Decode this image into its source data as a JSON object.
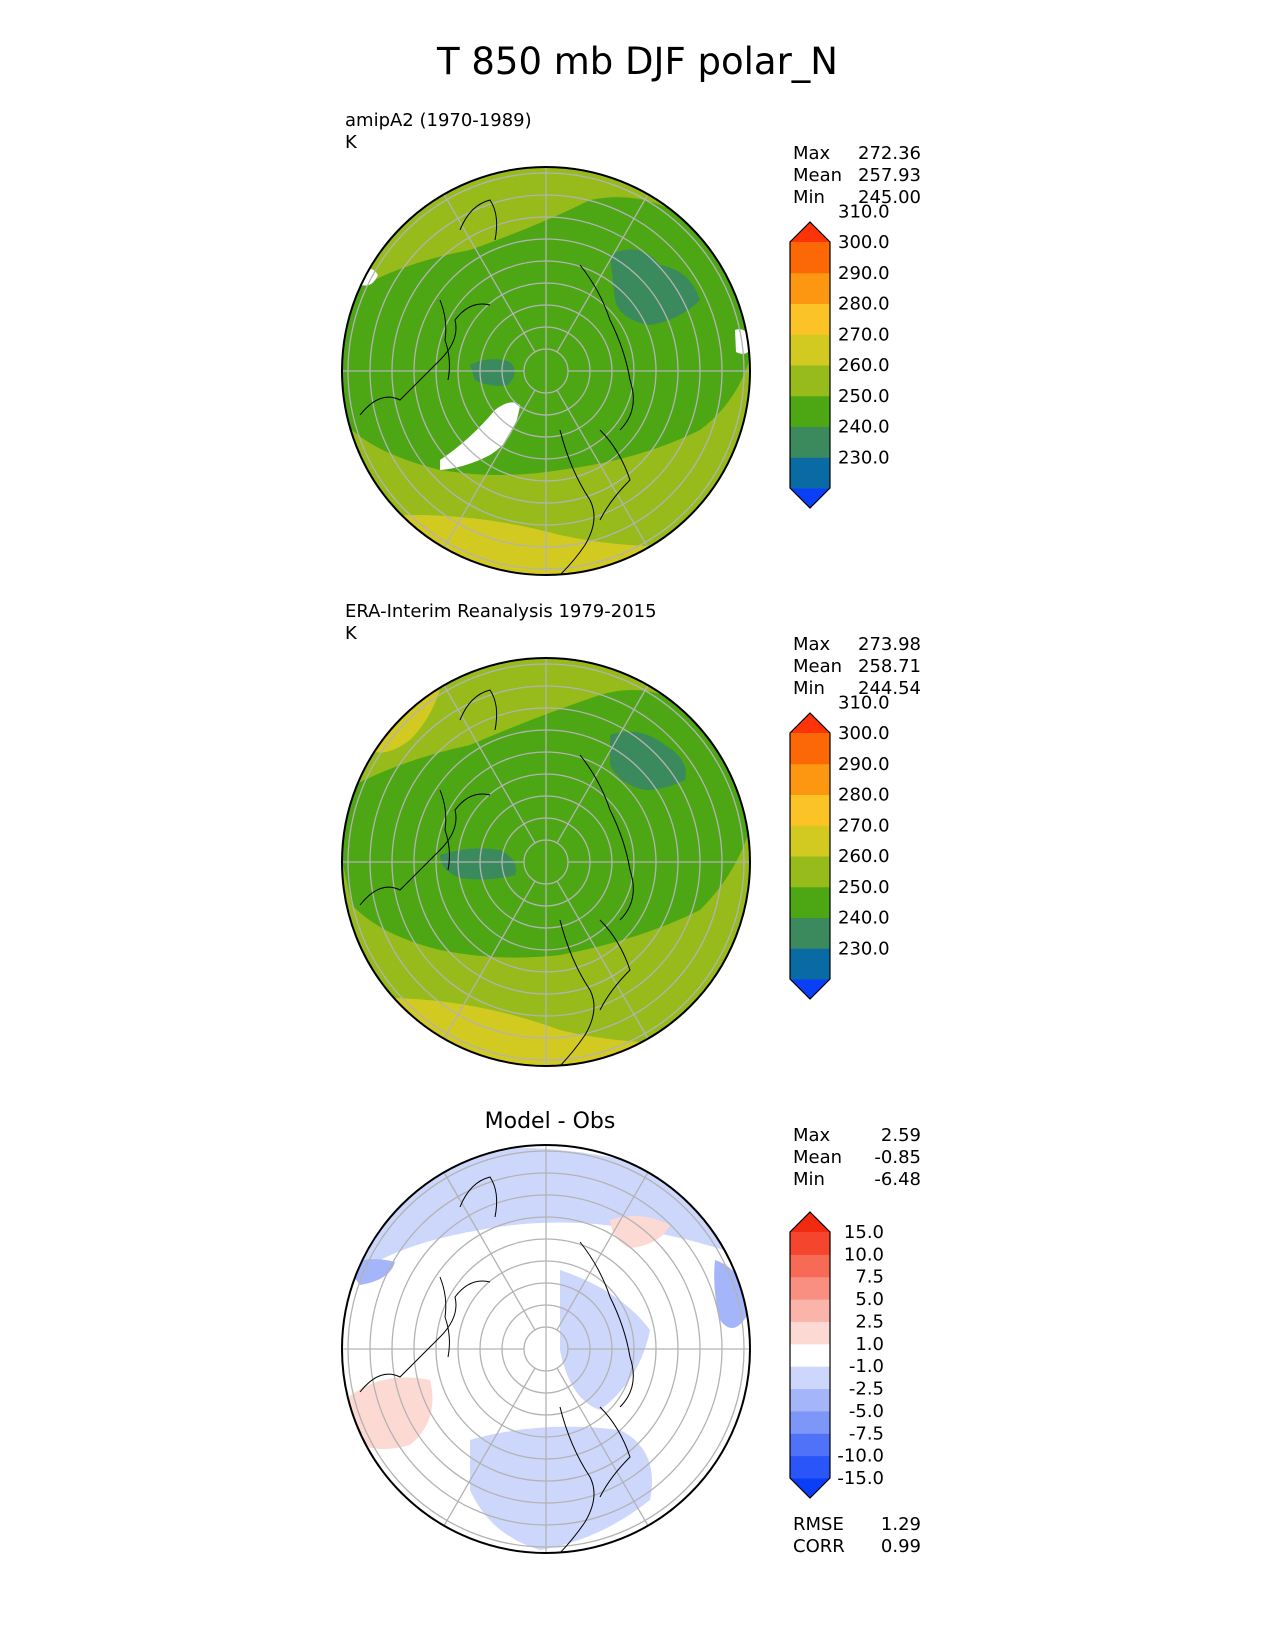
{
  "title": "T 850 mb DJF polar_N",
  "panels": [
    {
      "title": "amipA2 (1970-1989)",
      "units": "K",
      "stats": [
        {
          "label": "Max",
          "value": "272.36"
        },
        {
          "label": "Mean",
          "value": "257.93"
        },
        {
          "label": "Min",
          "value": "245.00"
        }
      ]
    },
    {
      "title": "ERA-Interim Reanalysis 1979-2015",
      "units": "K",
      "stats": [
        {
          "label": "Max",
          "value": "273.98"
        },
        {
          "label": "Mean",
          "value": "258.71"
        },
        {
          "label": "Min",
          "value": "244.54"
        }
      ]
    },
    {
      "title": "Model - Obs",
      "units": "",
      "stats": [
        {
          "label": "Max",
          "value": "2.59"
        },
        {
          "label": "Mean",
          "value": "-0.85"
        },
        {
          "label": "Min",
          "value": "-6.48"
        }
      ],
      "metrics": [
        {
          "label": "RMSE",
          "value": "1.29"
        },
        {
          "label": "CORR",
          "value": "0.99"
        }
      ]
    }
  ],
  "chart_data": [
    {
      "type": "heatmap",
      "projection": "north polar stereographic",
      "title": "amipA2 (1970-1989)",
      "units": "K",
      "colorbar": {
        "levels": [
          "230.0",
          "240.0",
          "250.0",
          "260.0",
          "270.0",
          "280.0",
          "290.0",
          "300.0",
          "310.0"
        ],
        "colors": [
          "#0b3ff7",
          "#0a6aa3",
          "#3a8a5e",
          "#4da614",
          "#96bb1a",
          "#d2ca21",
          "#fbc325",
          "#fd9712",
          "#fd6806",
          "#fe3307"
        ],
        "extend": "both"
      },
      "max": 272.36,
      "mean": 257.93,
      "min": 245.0
    },
    {
      "type": "heatmap",
      "projection": "north polar stereographic",
      "title": "ERA-Interim Reanalysis 1979-2015",
      "units": "K",
      "colorbar": {
        "levels": [
          "230.0",
          "240.0",
          "250.0",
          "260.0",
          "270.0",
          "280.0",
          "290.0",
          "300.0",
          "310.0"
        ],
        "colors": [
          "#0b3ff7",
          "#0a6aa3",
          "#3a8a5e",
          "#4da614",
          "#96bb1a",
          "#d2ca21",
          "#fbc325",
          "#fd9712",
          "#fd6806",
          "#fe3307"
        ],
        "extend": "both"
      },
      "max": 273.98,
      "mean": 258.71,
      "min": 244.54
    },
    {
      "type": "heatmap",
      "projection": "north polar stereographic",
      "title": "Model - Obs",
      "colorbar": {
        "levels": [
          "15.0",
          "10.0",
          "7.5",
          "5.0",
          "2.5",
          "1.0",
          "-1.0",
          "-2.5",
          "-5.0",
          "-7.5",
          "-10.0",
          "-15.0"
        ],
        "colors": [
          "#0b3ff7",
          "#2a55f8",
          "#4f72f8",
          "#7d97f9",
          "#a4b5fa",
          "#cdd7fb",
          "#ffffff",
          "#fdd9d4",
          "#fbb4aa",
          "#f98f80",
          "#f76a56",
          "#f5452c",
          "#f22a10"
        ],
        "extend": "both"
      },
      "max": 2.59,
      "mean": -0.85,
      "min": -6.48,
      "rmse": 1.29,
      "corr": 0.99
    }
  ]
}
